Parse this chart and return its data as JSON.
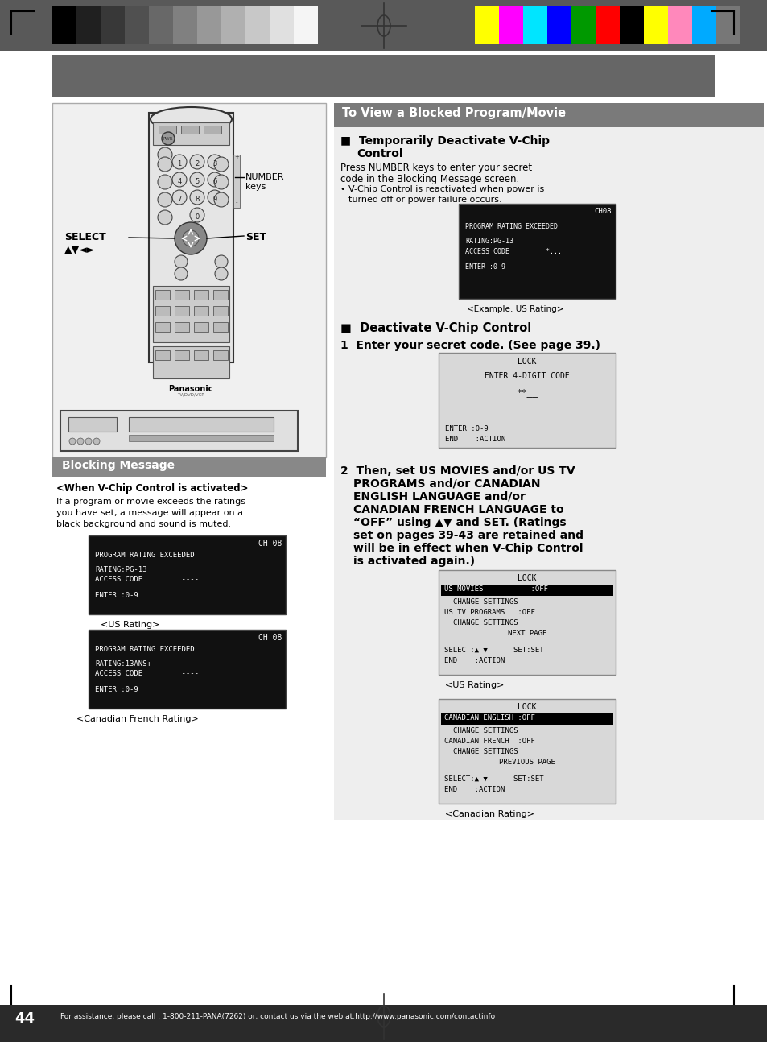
{
  "page_bg": "#ffffff",
  "gray_strip_bg": "#595959",
  "dark_header_bar": "#666666",
  "section_title_bg": "#7a7a7a",
  "section_title_text": "To View a Blocked Program/Movie",
  "section_title_text_color": "#ffffff",
  "light_gray_bg": "#e8e8e8",
  "dark_screen_bg": "#111111",
  "lock_screen_bg": "#d8d8d8",
  "highlight_bg": "#000000",
  "blocking_msg_bg": "#888888",
  "page_number": "44",
  "footer_text": "For assistance, please call : 1-800-211-PANA(7262) or, contact us via the web at:http://www.panasonic.com/contactinfo",
  "footer_bg": "#2a2a2a",
  "color_bars_left": [
    "#000000",
    "#202020",
    "#383838",
    "#505050",
    "#686868",
    "#808080",
    "#989898",
    "#b0b0b0",
    "#c8c8c8",
    "#e0e0e0",
    "#f5f5f5"
  ],
  "color_bars_right": [
    "#ffff00",
    "#ff00ff",
    "#00e5ff",
    "#0000ff",
    "#009900",
    "#ff0000",
    "#000000",
    "#ffff00",
    "#ff88bb",
    "#00aaff",
    "#777777"
  ],
  "left_panel_bg": "#f0f0f0",
  "left_panel_border": "#aaaaaa",
  "remote_body_color": "#e8e8e8",
  "remote_border_color": "#444444"
}
